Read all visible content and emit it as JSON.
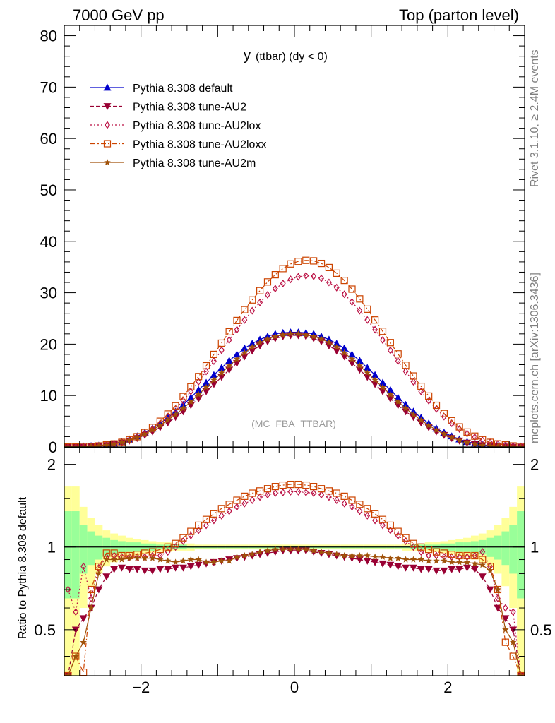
{
  "header": {
    "left": "7000 GeV pp",
    "right": "Top (parton level)"
  },
  "side_labels": {
    "rivet": "Rivet 3.1.10, ≥ 2.4M events",
    "mcplots": "mcplots.cern.ch [arXiv:1306.3436]"
  },
  "chart_data": [
    {
      "type": "line",
      "panel": "main",
      "title": "y",
      "title_sub": "(ttbar) (dy < 0)",
      "annotation": "(MC_FBA_TTBAR)",
      "xlim": [
        -3.0,
        3.0
      ],
      "ylim": [
        0,
        82
      ],
      "yticks": [
        0,
        10,
        20,
        30,
        40,
        50,
        60,
        70,
        80
      ],
      "ytick_labels": [
        "0",
        "10",
        "20",
        "30",
        "40",
        "50",
        "60",
        "70",
        "80"
      ],
      "legend_position": "top-left",
      "x": [
        -2.95,
        -2.85,
        -2.75,
        -2.65,
        -2.55,
        -2.45,
        -2.35,
        -2.25,
        -2.15,
        -2.05,
        -1.95,
        -1.85,
        -1.75,
        -1.65,
        -1.55,
        -1.45,
        -1.35,
        -1.25,
        -1.15,
        -1.05,
        -0.95,
        -0.85,
        -0.75,
        -0.65,
        -0.55,
        -0.45,
        -0.35,
        -0.25,
        -0.15,
        -0.05,
        0.05,
        0.15,
        0.25,
        0.35,
        0.45,
        0.55,
        0.65,
        0.75,
        0.85,
        0.95,
        1.05,
        1.15,
        1.25,
        1.35,
        1.45,
        1.55,
        1.65,
        1.75,
        1.85,
        1.95,
        2.05,
        2.15,
        2.25,
        2.35,
        2.45,
        2.55,
        2.65,
        2.75,
        2.85,
        2.95
      ],
      "series": [
        {
          "name": "Pythia 8.308 default",
          "color": "#0000cc",
          "dash": "",
          "marker": "triangle-up",
          "values": [
            0.0,
            0.0,
            0.1,
            0.2,
            0.3,
            0.4,
            0.7,
            1.0,
            1.5,
            2.1,
            2.8,
            3.6,
            4.6,
            5.7,
            6.9,
            8.2,
            9.6,
            11.1,
            12.5,
            14.0,
            15.4,
            16.8,
            18.0,
            19.2,
            20.1,
            20.9,
            21.5,
            22.0,
            22.2,
            22.3,
            22.3,
            22.2,
            22.0,
            21.5,
            20.9,
            20.1,
            19.2,
            18.0,
            16.8,
            15.4,
            14.0,
            12.5,
            11.1,
            9.6,
            8.2,
            6.9,
            5.7,
            4.6,
            3.6,
            2.8,
            2.1,
            1.5,
            1.0,
            0.7,
            0.4,
            0.3,
            0.2,
            0.1,
            0.0,
            0.0
          ]
        },
        {
          "name": "Pythia 8.308 tune-AU2",
          "color": "#990033",
          "dash": "5,3",
          "marker": "triangle-down",
          "values": [
            0.0,
            0.0,
            0.0,
            0.1,
            0.2,
            0.3,
            0.5,
            0.8,
            1.2,
            1.7,
            2.3,
            3.0,
            3.8,
            4.7,
            5.8,
            6.9,
            8.1,
            9.4,
            10.8,
            12.2,
            13.6,
            15.0,
            16.3,
            17.6,
            18.7,
            19.7,
            20.5,
            21.1,
            21.5,
            21.7,
            21.7,
            21.5,
            21.1,
            20.5,
            19.7,
            18.7,
            17.6,
            16.3,
            15.0,
            13.6,
            12.2,
            10.8,
            9.4,
            8.1,
            6.9,
            5.8,
            4.7,
            3.8,
            3.0,
            2.3,
            1.7,
            1.2,
            0.8,
            0.5,
            0.3,
            0.2,
            0.1,
            0.0,
            0.0,
            0.0
          ]
        },
        {
          "name": "Pythia 8.308 tune-AU2lox",
          "color": "#bb1144",
          "dash": "2,3",
          "marker": "diamond-open",
          "values": [
            0.0,
            0.0,
            0.1,
            0.1,
            0.2,
            0.4,
            0.6,
            0.9,
            1.3,
            1.9,
            2.6,
            3.5,
            4.6,
            5.9,
            7.4,
            9.0,
            10.8,
            12.7,
            14.7,
            16.7,
            18.8,
            20.8,
            22.8,
            24.7,
            26.5,
            28.1,
            29.6,
            30.8,
            31.8,
            32.6,
            33.1,
            33.3,
            33.2,
            32.8,
            32.0,
            31.0,
            29.7,
            28.2,
            26.5,
            24.7,
            22.8,
            20.8,
            18.8,
            16.7,
            14.7,
            12.7,
            10.8,
            9.0,
            7.4,
            5.9,
            4.6,
            3.5,
            2.6,
            1.9,
            1.3,
            0.9,
            0.6,
            0.4,
            0.2,
            0.1
          ]
        },
        {
          "name": "Pythia 8.308 tune-AU2loxx",
          "color": "#cc4400",
          "dash": "7,3,2,3",
          "marker": "square-open",
          "values": [
            0.0,
            0.0,
            0.1,
            0.1,
            0.2,
            0.4,
            0.6,
            0.9,
            1.4,
            2.0,
            2.8,
            3.8,
            5.0,
            6.4,
            8.0,
            9.8,
            11.7,
            13.7,
            15.8,
            18.0,
            20.2,
            22.4,
            24.6,
            26.7,
            28.6,
            30.4,
            32.1,
            33.5,
            34.7,
            35.6,
            36.1,
            36.3,
            36.2,
            35.7,
            34.9,
            33.8,
            32.4,
            30.7,
            28.8,
            26.8,
            24.7,
            22.5,
            20.3,
            18.1,
            15.9,
            13.8,
            11.8,
            9.9,
            8.1,
            6.5,
            5.1,
            3.9,
            2.9,
            2.1,
            1.4,
            0.9,
            0.6,
            0.4,
            0.2,
            0.1
          ]
        },
        {
          "name": "Pythia 8.308 tune-AU2m",
          "color": "#a0520a",
          "dash": "",
          "marker": "star",
          "values": [
            0.0,
            0.0,
            0.0,
            0.1,
            0.2,
            0.3,
            0.6,
            0.9,
            1.3,
            1.8,
            2.5,
            3.3,
            4.2,
            5.2,
            6.3,
            7.5,
            8.8,
            10.2,
            11.6,
            13.0,
            14.4,
            15.8,
            17.1,
            18.3,
            19.4,
            20.3,
            21.0,
            21.5,
            21.8,
            22.0,
            22.0,
            21.8,
            21.5,
            21.0,
            20.3,
            19.4,
            18.3,
            17.1,
            15.8,
            14.4,
            13.0,
            11.6,
            10.2,
            8.8,
            7.5,
            6.3,
            5.2,
            4.2,
            3.3,
            2.5,
            1.8,
            1.3,
            0.9,
            0.6,
            0.3,
            0.2,
            0.1,
            0.0,
            0.0,
            0.0
          ]
        }
      ]
    },
    {
      "type": "line",
      "panel": "ratio",
      "ylabel": "Ratio to Pythia 8.308 default",
      "xlim": [
        -3.0,
        3.0
      ],
      "ylim": [
        0.34,
        2.3
      ],
      "xticks": [
        -2,
        0,
        2
      ],
      "xtick_labels": [
        "−2",
        "0",
        "2"
      ],
      "yticks": [
        0.5,
        1,
        2
      ],
      "ytick_labels": [
        "0.5",
        "1",
        "2"
      ],
      "reference_line": 1,
      "band_colors": {
        "inner": "#99ff99",
        "outer": "#ffff99"
      },
      "x": [
        -2.95,
        -2.85,
        -2.75,
        -2.65,
        -2.55,
        -2.45,
        -2.35,
        -2.25,
        -2.15,
        -2.05,
        -1.95,
        -1.85,
        -1.75,
        -1.65,
        -1.55,
        -1.45,
        -1.35,
        -1.25,
        -1.15,
        -1.05,
        -0.95,
        -0.85,
        -0.75,
        -0.65,
        -0.55,
        -0.45,
        -0.35,
        -0.25,
        -0.15,
        -0.05,
        0.05,
        0.15,
        0.25,
        0.35,
        0.45,
        0.55,
        0.65,
        0.75,
        0.85,
        0.95,
        1.05,
        1.15,
        1.25,
        1.35,
        1.45,
        1.55,
        1.65,
        1.75,
        1.85,
        1.95,
        2.05,
        2.15,
        2.25,
        2.35,
        2.45,
        2.55,
        2.65,
        2.75,
        2.85,
        2.95
      ],
      "band_inner": [
        0.65,
        0.65,
        0.8,
        0.86,
        0.9,
        0.92,
        0.94,
        0.95,
        0.96,
        0.96,
        0.97,
        0.97,
        0.98,
        0.98,
        0.98,
        0.98,
        0.99,
        0.99,
        0.99,
        0.99,
        0.99,
        0.99,
        0.99,
        0.99,
        0.99,
        0.99,
        0.99,
        0.99,
        0.99,
        0.99,
        0.99,
        0.99,
        0.99,
        0.99,
        0.99,
        0.99,
        0.99,
        0.99,
        0.99,
        0.99,
        0.99,
        0.99,
        0.99,
        0.99,
        0.99,
        0.98,
        0.98,
        0.98,
        0.98,
        0.97,
        0.97,
        0.96,
        0.96,
        0.95,
        0.94,
        0.92,
        0.9,
        0.86,
        0.8,
        0.65
      ],
      "band_outer": [
        0.34,
        0.34,
        0.6,
        0.72,
        0.8,
        0.85,
        0.88,
        0.9,
        0.92,
        0.93,
        0.94,
        0.95,
        0.96,
        0.96,
        0.97,
        0.97,
        0.97,
        0.98,
        0.98,
        0.98,
        0.98,
        0.98,
        0.98,
        0.98,
        0.98,
        0.98,
        0.98,
        0.98,
        0.98,
        0.98,
        0.98,
        0.98,
        0.98,
        0.98,
        0.98,
        0.98,
        0.98,
        0.98,
        0.98,
        0.98,
        0.98,
        0.98,
        0.98,
        0.98,
        0.97,
        0.97,
        0.97,
        0.96,
        0.96,
        0.95,
        0.94,
        0.93,
        0.92,
        0.9,
        0.88,
        0.85,
        0.8,
        0.72,
        0.6,
        0.34
      ],
      "series": [
        {
          "name": "Pythia 8.308 tune-AU2",
          "color": "#990033",
          "dash": "5,3",
          "marker": "triangle-down",
          "values": [
            0.2,
            0.5,
            0.55,
            0.6,
            0.7,
            0.78,
            0.83,
            0.84,
            0.83,
            0.83,
            0.82,
            0.82,
            0.83,
            0.83,
            0.84,
            0.84,
            0.85,
            0.86,
            0.87,
            0.88,
            0.89,
            0.9,
            0.91,
            0.92,
            0.93,
            0.94,
            0.95,
            0.96,
            0.97,
            0.97,
            0.97,
            0.97,
            0.96,
            0.95,
            0.94,
            0.93,
            0.92,
            0.91,
            0.9,
            0.89,
            0.88,
            0.87,
            0.86,
            0.85,
            0.84,
            0.84,
            0.83,
            0.83,
            0.82,
            0.82,
            0.83,
            0.83,
            0.84,
            0.83,
            0.78,
            0.7,
            0.6,
            0.55,
            0.5,
            0.2
          ]
        },
        {
          "name": "Pythia 8.308 tune-AU2lox",
          "color": "#bb1144",
          "dash": "2,3",
          "marker": "diamond-open",
          "values": [
            0.7,
            0.58,
            0.85,
            0.65,
            0.84,
            0.92,
            0.93,
            0.92,
            0.92,
            0.92,
            0.92,
            0.93,
            0.93,
            0.96,
            1.0,
            1.05,
            1.1,
            1.15,
            1.2,
            1.25,
            1.3,
            1.35,
            1.4,
            1.44,
            1.48,
            1.52,
            1.55,
            1.57,
            1.58,
            1.59,
            1.59,
            1.58,
            1.57,
            1.55,
            1.52,
            1.48,
            1.44,
            1.4,
            1.35,
            1.3,
            1.25,
            1.2,
            1.15,
            1.1,
            1.05,
            1.0,
            0.96,
            0.93,
            0.93,
            0.92,
            0.92,
            0.92,
            0.92,
            0.93,
            0.96,
            0.85,
            0.65,
            0.6,
            0.58,
            0.3
          ]
        },
        {
          "name": "Pythia 8.308 tune-AU2loxx",
          "color": "#cc4400",
          "dash": "7,3,2,3",
          "marker": "square-open",
          "values": [
            0.3,
            0.4,
            0.35,
            0.7,
            0.85,
            0.95,
            0.95,
            0.93,
            0.93,
            0.94,
            0.95,
            0.96,
            0.98,
            1.0,
            1.03,
            1.08,
            1.14,
            1.2,
            1.26,
            1.32,
            1.38,
            1.43,
            1.48,
            1.53,
            1.57,
            1.6,
            1.63,
            1.66,
            1.68,
            1.69,
            1.69,
            1.68,
            1.66,
            1.63,
            1.6,
            1.57,
            1.53,
            1.48,
            1.43,
            1.38,
            1.32,
            1.26,
            1.2,
            1.14,
            1.08,
            1.03,
            1.0,
            0.98,
            0.96,
            0.95,
            0.94,
            0.93,
            0.93,
            0.93,
            0.9,
            0.85,
            0.7,
            0.45,
            0.4,
            0.3
          ]
        },
        {
          "name": "Pythia 8.308 tune-AU2m",
          "color": "#a0520a",
          "dash": "",
          "marker": "star",
          "values": [
            0.3,
            0.4,
            0.45,
            0.6,
            0.8,
            0.9,
            0.9,
            0.9,
            0.91,
            0.91,
            0.91,
            0.91,
            0.9,
            0.89,
            0.88,
            0.89,
            0.9,
            0.9,
            0.88,
            0.88,
            0.89,
            0.89,
            0.92,
            0.93,
            0.94,
            0.96,
            0.97,
            0.98,
            0.98,
            0.98,
            0.98,
            0.98,
            0.97,
            0.96,
            0.95,
            0.94,
            0.93,
            0.93,
            0.93,
            0.93,
            0.92,
            0.92,
            0.91,
            0.91,
            0.9,
            0.9,
            0.9,
            0.89,
            0.89,
            0.89,
            0.88,
            0.88,
            0.88,
            0.87,
            0.86,
            0.82,
            0.7,
            0.5,
            0.45,
            0.3
          ]
        }
      ]
    }
  ]
}
